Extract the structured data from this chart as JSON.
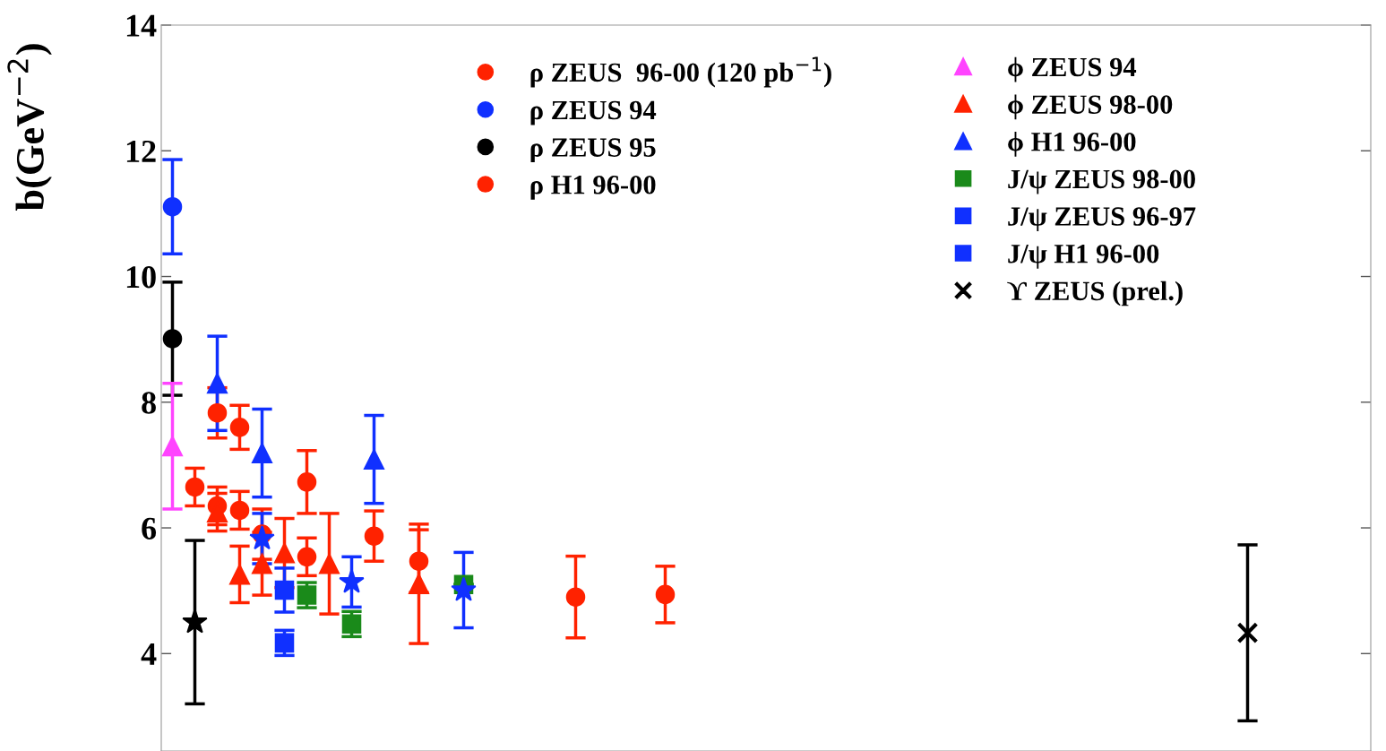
{
  "chart_data": {
    "type": "scatter",
    "ylabel": "b(GeV$^{−2}$)",
    "categories": [
      null,
      null,
      null,
      null,
      null,
      null,
      null,
      null,
      null,
      null,
      null,
      null,
      null,
      null,
      null,
      null,
      null,
      null,
      null,
      null,
      null,
      null,
      null,
      null,
      null,
      null,
      null,
      null,
      null,
      null,
      null,
      null,
      null,
      null,
      null,
      null,
      null,
      null,
      null,
      null,
      null,
      null,
      null,
      null,
      null,
      null,
      null,
      null,
      null,
      null,
      null,
      null,
      null,
      null
    ],
    "ylim": [
      2.45,
      14
    ],
    "yticks": [
      4,
      6,
      8,
      10,
      12,
      14
    ],
    "tick_labels": "y",
    "legend": "top right",
    "series": [
      {
        "name": "ρ ZEUS  96-00 (120 pb$^{−1}$)",
        "color": "#ff2200",
        "marker": "circle",
        "values": [
          null,
          6.65,
          6.35,
          6.28,
          5.9,
          null,
          5.54,
          null,
          null,
          null,
          null,
          5.47,
          null,
          null,
          null,
          null,
          null,
          null,
          null,
          null,
          null,
          null,
          4.94,
          null,
          null,
          null,
          null,
          null,
          null,
          null,
          null,
          null,
          null,
          null,
          null,
          null,
          null,
          null,
          null,
          null,
          null,
          null,
          null,
          null,
          null,
          null,
          null,
          null,
          null,
          null,
          null,
          null,
          null,
          null
        ],
        "errors": [
          null,
          0.3,
          0.3,
          0.3,
          0.4,
          null,
          0.3,
          null,
          null,
          null,
          null,
          0.5,
          null,
          null,
          null,
          null,
          null,
          null,
          null,
          null,
          null,
          null,
          0.45,
          null,
          null,
          null,
          null,
          null,
          null,
          null,
          null,
          null,
          null,
          null,
          null,
          null,
          null,
          null,
          null,
          null,
          null,
          null,
          null,
          null,
          null,
          null,
          null,
          null,
          null,
          null,
          null,
          null,
          null,
          null
        ]
      },
      {
        "name": "ρ ZEUS 94",
        "color": "#1030ff",
        "marker": "circle",
        "values": [
          11.11,
          null,
          null,
          null,
          null,
          null,
          null,
          null,
          null,
          null,
          null,
          null,
          null,
          null,
          null,
          null,
          null,
          null,
          null,
          null,
          null,
          null,
          null,
          null,
          null,
          null,
          null,
          null,
          null,
          null,
          null,
          null,
          null,
          null,
          null,
          null,
          null,
          null,
          null,
          null,
          null,
          null,
          null,
          null,
          null,
          null,
          null,
          null,
          null,
          null,
          null,
          null,
          null,
          null
        ],
        "errors": [
          0.75,
          null,
          null,
          null,
          null,
          null,
          null,
          null,
          null,
          null,
          null,
          null,
          null,
          null,
          null,
          null,
          null,
          null,
          null,
          null,
          null,
          null,
          null,
          null,
          null,
          null,
          null,
          null,
          null,
          null,
          null,
          null,
          null,
          null,
          null,
          null,
          null,
          null,
          null,
          null,
          null,
          null,
          null,
          null,
          null,
          null,
          null,
          null,
          null,
          null,
          null,
          null,
          null,
          null
        ]
      },
      {
        "name": "ρ ZEUS 95",
        "color": "#000000",
        "marker": "circle",
        "values": [
          9.01,
          null,
          null,
          null,
          null,
          null,
          null,
          null,
          null,
          null,
          null,
          null,
          null,
          null,
          null,
          null,
          null,
          null,
          null,
          null,
          null,
          null,
          null,
          null,
          null,
          null,
          null,
          null,
          null,
          null,
          null,
          null,
          null,
          null,
          null,
          null,
          null,
          null,
          null,
          null,
          null,
          null,
          null,
          null,
          null,
          null,
          null,
          null,
          null,
          null,
          null,
          null,
          null,
          null
        ],
        "errors": [
          0.9,
          null,
          null,
          null,
          null,
          null,
          null,
          null,
          null,
          null,
          null,
          null,
          null,
          null,
          null,
          null,
          null,
          null,
          null,
          null,
          null,
          null,
          null,
          null,
          null,
          null,
          null,
          null,
          null,
          null,
          null,
          null,
          null,
          null,
          null,
          null,
          null,
          null,
          null,
          null,
          null,
          null,
          null,
          null,
          null,
          null,
          null,
          null,
          null,
          null,
          null,
          null,
          null,
          null
        ]
      },
      {
        "name": "ρ H1 96-00",
        "color": "#ff2200",
        "marker": "circle",
        "values": [
          null,
          null,
          7.83,
          7.6,
          null,
          null,
          6.73,
          null,
          null,
          5.87,
          null,
          null,
          null,
          null,
          null,
          null,
          null,
          null,
          4.9,
          null,
          null,
          null,
          null,
          null,
          null,
          null,
          null,
          null,
          null,
          null,
          null,
          null,
          null,
          null,
          null,
          null,
          null,
          null,
          null,
          null,
          null,
          null,
          null,
          null,
          null,
          null,
          null,
          null,
          null,
          null,
          null,
          null,
          null,
          null
        ],
        "errors": [
          null,
          null,
          0.4,
          0.35,
          null,
          null,
          0.5,
          null,
          null,
          0.4,
          null,
          null,
          null,
          null,
          null,
          null,
          null,
          null,
          0.65,
          null,
          null,
          null,
          null,
          null,
          null,
          null,
          null,
          null,
          null,
          null,
          null,
          null,
          null,
          null,
          null,
          null,
          null,
          null,
          null,
          null,
          null,
          null,
          null,
          null,
          null,
          null,
          null,
          null,
          null,
          null,
          null,
          null,
          null,
          null
        ]
      },
      {
        "name": "ϕ ZEUS 94",
        "color": "#ff44ff",
        "marker": "triangle",
        "values": [
          7.3,
          null,
          null,
          null,
          null,
          null,
          null,
          null,
          null,
          null,
          null,
          null,
          null,
          null,
          null,
          null,
          null,
          null,
          null,
          null,
          null,
          null,
          null,
          null,
          null,
          null,
          null,
          null,
          null,
          null,
          null,
          null,
          null,
          null,
          null,
          null,
          null,
          null,
          null,
          null,
          null,
          null,
          null,
          null,
          null,
          null,
          null,
          null,
          null,
          null,
          null,
          null,
          null,
          null
        ],
        "errors": [
          1.0,
          null,
          null,
          null,
          null,
          null,
          null,
          null,
          null,
          null,
          null,
          null,
          null,
          null,
          null,
          null,
          null,
          null,
          null,
          null,
          null,
          null,
          null,
          null,
          null,
          null,
          null,
          null,
          null,
          null,
          null,
          null,
          null,
          null,
          null,
          null,
          null,
          null,
          null,
          null,
          null,
          null,
          null,
          null,
          null,
          null,
          null,
          null,
          null,
          null,
          null,
          null,
          null,
          null
        ]
      },
      {
        "name": "ϕ ZEUS 98-00",
        "color": "#ff2200",
        "marker": "triangle",
        "values": [
          null,
          null,
          6.25,
          5.26,
          5.43,
          5.6,
          null,
          5.43,
          null,
          null,
          null,
          5.11,
          null,
          null,
          null,
          null,
          null,
          null,
          null,
          null,
          null,
          null,
          null,
          null,
          null,
          null,
          null,
          null,
          null,
          null,
          null,
          null,
          null,
          null,
          null,
          null,
          null,
          null,
          null,
          null,
          null,
          null,
          null,
          null,
          null,
          null,
          null,
          null,
          null,
          null,
          null,
          null,
          null,
          null
        ],
        "errors": [
          null,
          null,
          0.3,
          0.45,
          0.5,
          0.55,
          null,
          0.8,
          null,
          null,
          null,
          0.95,
          null,
          null,
          null,
          null,
          null,
          null,
          null,
          null,
          null,
          null,
          null,
          null,
          null,
          null,
          null,
          null,
          null,
          null,
          null,
          null,
          null,
          null,
          null,
          null,
          null,
          null,
          null,
          null,
          null,
          null,
          null,
          null,
          null,
          null,
          null,
          null,
          null,
          null,
          null,
          null,
          null,
          null
        ]
      },
      {
        "name": "ϕ H1 96-00",
        "color": "#1030ff",
        "marker": "triangle",
        "values": [
          null,
          null,
          8.3,
          null,
          7.19,
          null,
          null,
          null,
          null,
          7.09,
          null,
          null,
          null,
          null,
          null,
          null,
          null,
          null,
          null,
          null,
          null,
          null,
          null,
          null,
          null,
          null,
          null,
          null,
          null,
          null,
          null,
          null,
          null,
          null,
          null,
          null,
          null,
          null,
          null,
          null,
          null,
          null,
          null,
          null,
          null,
          null,
          null,
          null,
          null,
          null,
          null,
          null,
          null,
          null
        ],
        "errors": [
          null,
          null,
          0.75,
          null,
          0.7,
          null,
          null,
          null,
          null,
          0.7,
          null,
          null,
          null,
          null,
          null,
          null,
          null,
          null,
          null,
          null,
          null,
          null,
          null,
          null,
          null,
          null,
          null,
          null,
          null,
          null,
          null,
          null,
          null,
          null,
          null,
          null,
          null,
          null,
          null,
          null,
          null,
          null,
          null,
          null,
          null,
          null,
          null,
          null,
          null,
          null,
          null,
          null,
          null,
          null
        ]
      },
      {
        "name": "J/ψ ZEUS 98-00",
        "color": "#1a8a1a",
        "marker": "square",
        "values": [
          null,
          null,
          null,
          null,
          null,
          null,
          4.93,
          null,
          4.47,
          null,
          null,
          null,
          null,
          5.1,
          null,
          null,
          null,
          null,
          null,
          null,
          null,
          null,
          null,
          null,
          null,
          null,
          null,
          null,
          null,
          null,
          null,
          null,
          null,
          null,
          null,
          null,
          null,
          null,
          null,
          null,
          null,
          null,
          null,
          null,
          null,
          null,
          null,
          null,
          null,
          null,
          null,
          null,
          null,
          null
        ],
        "errors": [
          null,
          null,
          null,
          null,
          null,
          null,
          0.2,
          null,
          0.2,
          null,
          null,
          null,
          null,
          null,
          null,
          null,
          null,
          null,
          null,
          null,
          null,
          null,
          null,
          null,
          null,
          null,
          null,
          null,
          null,
          null,
          null,
          null,
          null,
          null,
          null,
          null,
          null,
          null,
          null,
          null,
          null,
          null,
          null,
          null,
          null,
          null,
          null,
          null,
          null,
          null,
          null,
          null,
          null,
          null
        ]
      },
      {
        "name": "J/ψ ZEUS 96-97",
        "color": "#1030ff",
        "marker": "square",
        "values": [
          null,
          null,
          null,
          null,
          null,
          4.17,
          null,
          null,
          null,
          null,
          null,
          null,
          null,
          null,
          null,
          null,
          null,
          null,
          null,
          null,
          null,
          null,
          null,
          null,
          null,
          null,
          null,
          null,
          null,
          null,
          null,
          null,
          null,
          null,
          null,
          null,
          null,
          null,
          null,
          null,
          null,
          null,
          null,
          null,
          null,
          null,
          null,
          null,
          null,
          null,
          null,
          null,
          null,
          null
        ],
        "errors": [
          null,
          null,
          null,
          null,
          null,
          0.2,
          null,
          null,
          null,
          null,
          null,
          null,
          null,
          null,
          null,
          null,
          null,
          null,
          null,
          null,
          null,
          null,
          null,
          null,
          null,
          null,
          null,
          null,
          null,
          null,
          null,
          null,
          null,
          null,
          null,
          null,
          null,
          null,
          null,
          null,
          null,
          null,
          null,
          null,
          null,
          null,
          null,
          null,
          null,
          null,
          null,
          null,
          null,
          null
        ]
      },
      {
        "name": "J/ψ H1 96-00",
        "color": "#1030ff",
        "marker": "square",
        "values": [
          null,
          null,
          null,
          null,
          null,
          5.01,
          null,
          null,
          null,
          null,
          null,
          null,
          null,
          null,
          null,
          null,
          null,
          null,
          null,
          null,
          null,
          null,
          null,
          null,
          null,
          null,
          null,
          null,
          null,
          null,
          null,
          null,
          null,
          null,
          null,
          null,
          null,
          null,
          null,
          null,
          null,
          null,
          null,
          null,
          null,
          null,
          null,
          null,
          null,
          null,
          null,
          null,
          null,
          null
        ],
        "errors": [
          null,
          null,
          null,
          null,
          null,
          0.35,
          null,
          null,
          null,
          null,
          null,
          null,
          null,
          null,
          null,
          null,
          null,
          null,
          null,
          null,
          null,
          null,
          null,
          null,
          null,
          null,
          null,
          null,
          null,
          null,
          null,
          null,
          null,
          null,
          null,
          null,
          null,
          null,
          null,
          null,
          null,
          null,
          null,
          null,
          null,
          null,
          null,
          null,
          null,
          null,
          null,
          null,
          null,
          null
        ]
      },
      {
        "name": "ϒ ZEUS (prel.)",
        "color": "#000000",
        "marker": "cross",
        "values": [
          null,
          null,
          null,
          null,
          null,
          null,
          null,
          null,
          null,
          null,
          null,
          null,
          null,
          null,
          null,
          null,
          null,
          null,
          null,
          null,
          null,
          null,
          null,
          null,
          null,
          null,
          null,
          null,
          null,
          null,
          null,
          null,
          null,
          null,
          null,
          null,
          null,
          null,
          null,
          null,
          null,
          null,
          null,
          null,
          null,
          null,
          null,
          null,
          4.33,
          null,
          null,
          null,
          null,
          null
        ],
        "errors": [
          null,
          null,
          null,
          null,
          null,
          null,
          null,
          null,
          null,
          null,
          null,
          null,
          null,
          null,
          null,
          null,
          null,
          null,
          null,
          null,
          null,
          null,
          null,
          null,
          null,
          null,
          null,
          null,
          null,
          null,
          null,
          null,
          null,
          null,
          null,
          null,
          null,
          null,
          null,
          null,
          null,
          null,
          null,
          null,
          null,
          null,
          null,
          null,
          1.4,
          null,
          null,
          null,
          null,
          null
        ]
      },
      {
        "color": "#1030ff",
        "marker": "star",
        "values": [
          null,
          null,
          null,
          null,
          5.83,
          null,
          null,
          null,
          5.14,
          null,
          null,
          null,
          null,
          5.01,
          null,
          null,
          null,
          null,
          null,
          null,
          null,
          null,
          null,
          null,
          null,
          null,
          null,
          null,
          null,
          null,
          null,
          null,
          null,
          null,
          null,
          null,
          null,
          null,
          null,
          null,
          null,
          null,
          null,
          null,
          null,
          null,
          null,
          null,
          null,
          null,
          null,
          null,
          null,
          null
        ],
        "errors": [
          null,
          null,
          null,
          null,
          0.4,
          null,
          null,
          null,
          0.4,
          null,
          null,
          null,
          null,
          0.6,
          null,
          null,
          null,
          null,
          null,
          null,
          null,
          null,
          null,
          null,
          null,
          null,
          null,
          null,
          null,
          null,
          null,
          null,
          null,
          null,
          null,
          null,
          null,
          null,
          null,
          null,
          null,
          null,
          null,
          null,
          null,
          null,
          null,
          null,
          null,
          null,
          null,
          null,
          null,
          null
        ]
      },
      {
        "color": "#000000",
        "marker": "star",
        "values": [
          null,
          4.5,
          null,
          null,
          null,
          null,
          null,
          null,
          null,
          null,
          null,
          null,
          null,
          null,
          null,
          null,
          null,
          null,
          null,
          null,
          null,
          null,
          null,
          null,
          null,
          null,
          null,
          null,
          null,
          null,
          null,
          null,
          null,
          null,
          null,
          null,
          null,
          null,
          null,
          null,
          null,
          null,
          null,
          null,
          null,
          null,
          null,
          null,
          null,
          null,
          null,
          null,
          null,
          null
        ],
        "errors": [
          null,
          1.3,
          null,
          null,
          null,
          null,
          null,
          null,
          null,
          null,
          null,
          null,
          null,
          null,
          null,
          null,
          null,
          null,
          null,
          null,
          null,
          null,
          null,
          null,
          null,
          null,
          null,
          null,
          null,
          null,
          null,
          null,
          null,
          null,
          null,
          null,
          null,
          null,
          null,
          null,
          null,
          null,
          null,
          null,
          null,
          null,
          null,
          null,
          null,
          null,
          null,
          null,
          null,
          null
        ]
      }
    ]
  }
}
